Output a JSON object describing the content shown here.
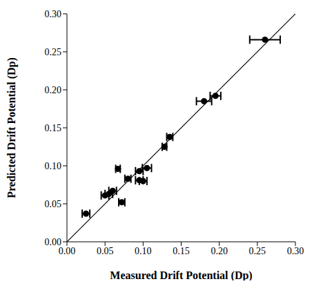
{
  "chart_data": {
    "type": "scatter",
    "x_label": "Measured Drift Potential (Dp)",
    "y_label": "Predicted Drift Potential (Dp)",
    "xlim": [
      0,
      0.3
    ],
    "ylim": [
      0,
      0.3
    ],
    "xticks": [
      {
        "value": 0,
        "label": "0.00"
      },
      {
        "value": 0.05,
        "label": "0.05"
      },
      {
        "value": 0.1,
        "label": "0.10"
      },
      {
        "value": 0.15,
        "label": "0.15"
      },
      {
        "value": 0.2,
        "label": "0.20"
      },
      {
        "value": 0.25,
        "label": "0.25"
      },
      {
        "value": 0.3,
        "label": "0.30"
      }
    ],
    "yticks": [
      {
        "value": 0,
        "label": "0.00"
      },
      {
        "value": 0.05,
        "label": "0.05"
      },
      {
        "value": 0.1,
        "label": "0.10"
      },
      {
        "value": 0.15,
        "label": "0.15"
      },
      {
        "value": 0.2,
        "label": "0.20"
      },
      {
        "value": 0.25,
        "label": "0.25"
      },
      {
        "value": 0.3,
        "label": "0.30"
      }
    ],
    "grid": false,
    "series": [
      {
        "type": "scatter",
        "color": "#000000",
        "marker": "circle",
        "x": [
          0.025,
          0.05,
          0.055,
          0.06,
          0.067,
          0.072,
          0.08,
          0.095,
          0.095,
          0.1,
          0.105,
          0.128,
          0.135,
          0.18,
          0.195,
          0.26
        ],
        "values": [
          0.037,
          0.061,
          0.063,
          0.067,
          0.096,
          0.052,
          0.083,
          0.093,
          0.081,
          0.08,
          0.097,
          0.125,
          0.138,
          0.185,
          0.192,
          0.266
        ],
        "x_error": [
          0.005,
          0.005,
          0.005,
          0.005,
          0.003,
          0.004,
          0.004,
          0.005,
          0.005,
          0.005,
          0.006,
          0.003,
          0.004,
          0.01,
          0.007,
          0.02
        ]
      },
      {
        "type": "line",
        "color": "#000000",
        "line_style": "solid",
        "x": [
          0,
          0.3
        ],
        "values": [
          0,
          0.3
        ]
      }
    ]
  }
}
